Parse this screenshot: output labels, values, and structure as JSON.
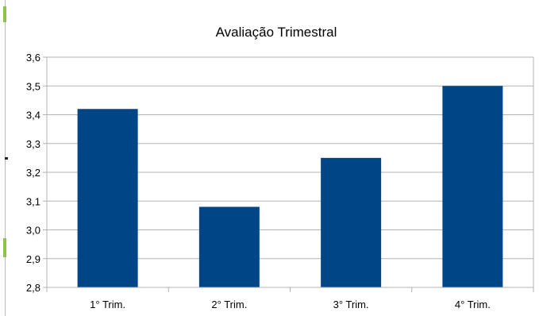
{
  "chart_data": {
    "type": "bar",
    "title": "Avaliação Trimestral",
    "xlabel": "",
    "ylabel": "",
    "categories": [
      "1° Trim.",
      "2° Trim.",
      "3° Trim.",
      "4° Trim."
    ],
    "values": [
      3.42,
      3.08,
      3.25,
      3.5
    ],
    "ylim": [
      2.8,
      3.6
    ],
    "yticks": [
      "2,8",
      "2,9",
      "3,0",
      "3,1",
      "3,2",
      "3,3",
      "3,4",
      "3,5",
      "3,6"
    ],
    "ytick_values": [
      2.8,
      2.9,
      3.0,
      3.1,
      3.2,
      3.3,
      3.4,
      3.5,
      3.6
    ],
    "grid": true,
    "legend": "none",
    "colors": {
      "bar": "#004586",
      "grid": "#b3b3b3",
      "axis": "#b3b3b3",
      "text": "#000000"
    }
  }
}
